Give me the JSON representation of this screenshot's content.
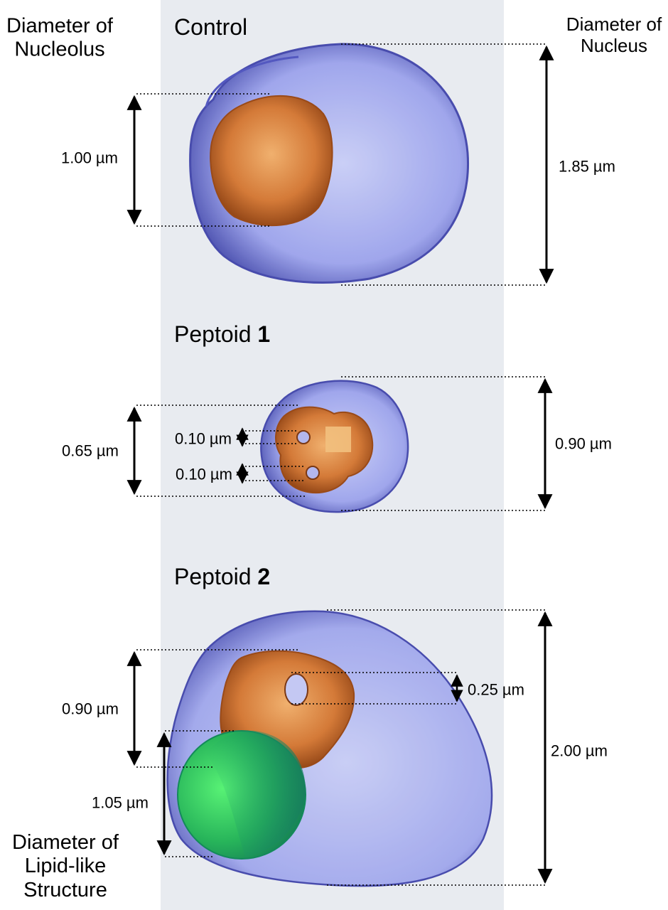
{
  "headers": {
    "nucleolus": [
      "Diameter of",
      "Nucleolus"
    ],
    "nucleus": [
      "Diameter of",
      "Nucleus"
    ],
    "lipid": [
      "Diameter of",
      "Lipid-like",
      "Structure"
    ]
  },
  "panels": [
    {
      "title_text": "Control",
      "title_bold": ""
    },
    {
      "title_text": "Peptoid ",
      "title_bold": "1"
    },
    {
      "title_text": "Peptoid ",
      "title_bold": "2"
    }
  ],
  "measurements": {
    "control_nucleolus": "1.00 µm",
    "control_nucleus": "1.85 µm",
    "p1_nucleolus": "0.65 µm",
    "p1_hole_a": "0.10 µm",
    "p1_hole_b": "0.10 µm",
    "p1_nucleus": "0.90 µm",
    "p2_nucleolus": "0.90 µm",
    "p2_hole": "0.25 µm",
    "p2_nucleus": "2.00 µm",
    "p2_lipid": "1.05 µm"
  },
  "colors": {
    "panel_background": "#e8ebf0",
    "nucleus": "#8f96e8",
    "nucleolus": "#d97a3a",
    "lipid": "#2fd46a"
  }
}
